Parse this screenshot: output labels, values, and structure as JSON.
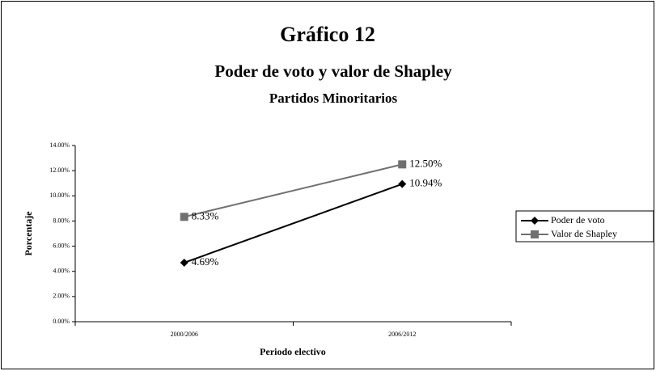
{
  "chart_data": {
    "type": "line",
    "title": "Gráfico 12",
    "subtitle": "Poder de voto y valor de Shapley",
    "subtitle2": "Partidos Minoritarios",
    "x_label": "Periodo electivo",
    "y_label": "Porcentaje",
    "categories": [
      "2000/2006",
      "2006/2012"
    ],
    "series": [
      {
        "name": "Poder de voto",
        "color": "#000000",
        "marker": "diamond",
        "values": [
          4.69,
          10.94
        ],
        "value_labels": [
          "4.69%",
          "10.94%"
        ]
      },
      {
        "name": "Valor de Shapley",
        "color": "#707070",
        "marker": "square",
        "values": [
          8.33,
          12.5
        ],
        "value_labels": [
          "8.33%",
          "12.50%"
        ]
      }
    ],
    "ylim": [
      0,
      14
    ],
    "yticks": [
      {
        "value": 0,
        "label": "0.00%"
      },
      {
        "value": 2,
        "label": "2.00%"
      },
      {
        "value": 4,
        "label": "4.00%"
      },
      {
        "value": 6,
        "label": "6.00%"
      },
      {
        "value": 8,
        "label": "8.00%"
      },
      {
        "value": 10,
        "label": "10.00%"
      },
      {
        "value": 12,
        "label": "12.00%"
      },
      {
        "value": 14,
        "label": "14.00%"
      }
    ],
    "grid": false,
    "legend": "right"
  }
}
